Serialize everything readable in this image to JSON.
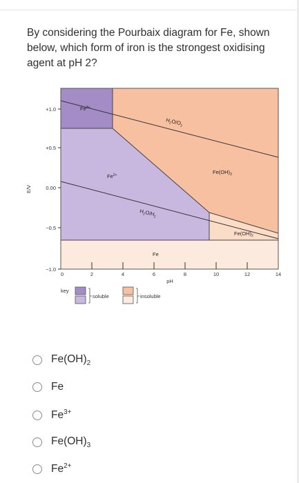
{
  "question": {
    "text": "By considering the Pourbaix diagram for Fe, shown below, which form of iron is the strongest oxidising agent at pH 2?"
  },
  "diagram": {
    "y_axis_label": "E/V",
    "x_axis_label": "pH",
    "y_ticks": [
      "+1.0",
      "+0.5",
      "0.00",
      "−0.5",
      "−1.0"
    ],
    "x_ticks": [
      "0",
      "2",
      "4",
      "6",
      "8",
      "10",
      "12",
      "14"
    ],
    "regions": {
      "fe3": "Fe",
      "fe3_sup": "3+",
      "fe2": "Fe",
      "fe2_sup": "2+",
      "feoh3": "Fe(OH)",
      "feoh3_sub": "3",
      "feoh2": "Fe(OH)",
      "feoh2_sub": "2",
      "fe": "Fe"
    },
    "lines": {
      "h2o_o2_a": "H",
      "h2o_o2_b": "2",
      "h2o_o2_c": "O/O",
      "h2o_o2_d": "2",
      "h2o_h2_a": "H",
      "h2o_h2_b": "2",
      "h2o_h2_c": "O/H",
      "h2o_h2_d": "2"
    },
    "key": {
      "title": "key",
      "soluble": "soluble",
      "insoluble": "insoluble"
    },
    "colors": {
      "fe3": "#a48cc6",
      "fe2": "#c8b8df",
      "fe2_low": "#b2a0d4",
      "feoh3": "#f7c0a0",
      "feoh2": "#fbdcc6",
      "fe_metal": "#fdeade"
    }
  },
  "options": [
    {
      "base": "Fe(OH)",
      "sub": "2",
      "sup": ""
    },
    {
      "base": "Fe",
      "sub": "",
      "sup": ""
    },
    {
      "base": "Fe",
      "sub": "",
      "sup": "3+"
    },
    {
      "base": "Fe(OH)",
      "sub": "3",
      "sup": ""
    },
    {
      "base": "Fe",
      "sub": "",
      "sup": "2+"
    }
  ]
}
